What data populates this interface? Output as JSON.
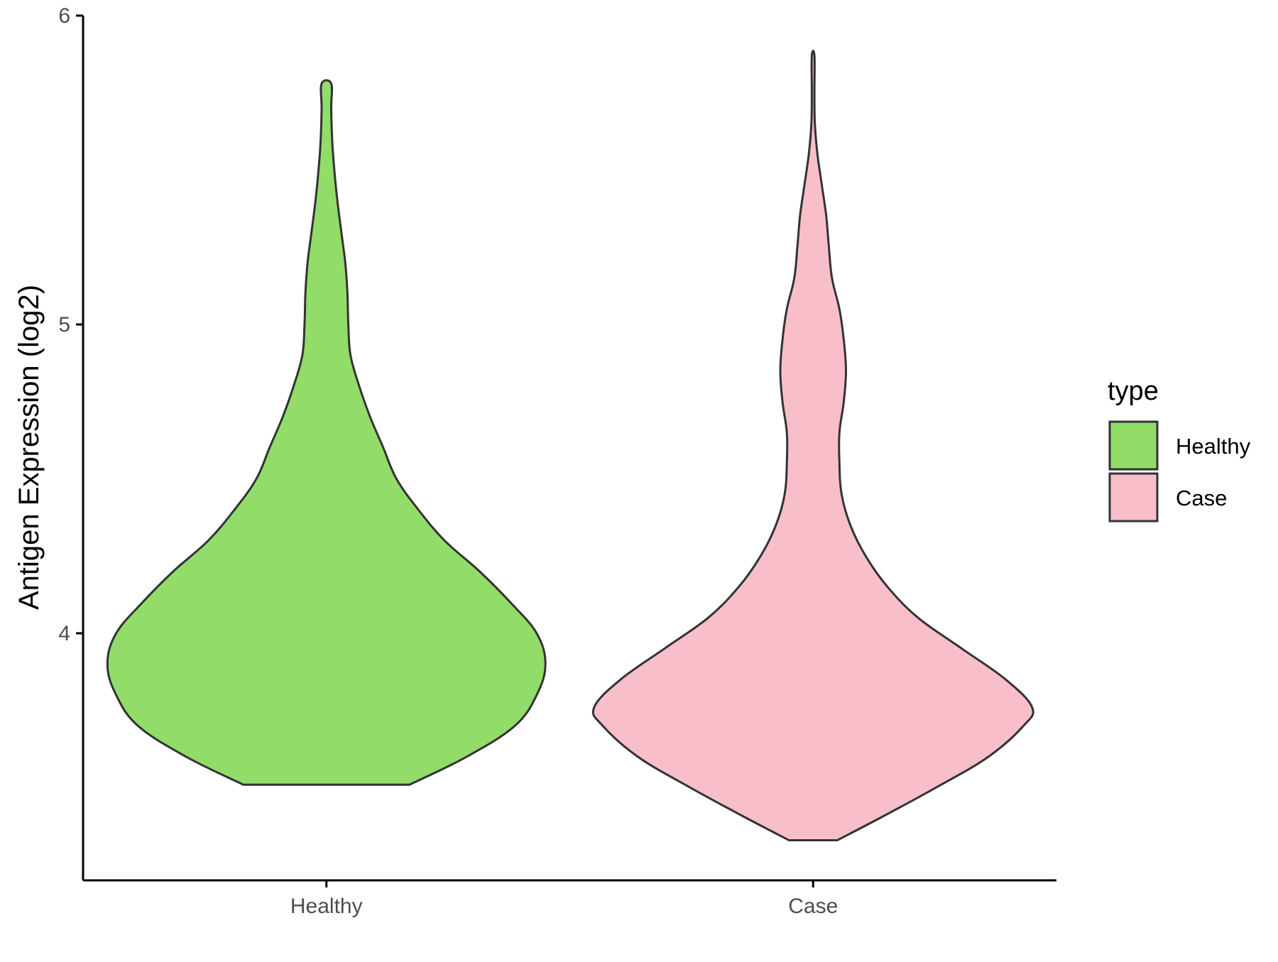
{
  "chart_data": {
    "type": "violin",
    "title": "",
    "xlabel": "",
    "ylabel": "Antigen Expression (log2)",
    "ylim": [
      3.2,
      6.0
    ],
    "y_ticks": [
      "4",
      "5",
      "6"
    ],
    "y_tick_values": [
      4,
      5,
      6
    ],
    "categories": [
      "Healthy",
      "Case"
    ],
    "legend": {
      "title": "type",
      "position": "right",
      "entries": [
        "Healthy",
        "Case"
      ]
    },
    "series": [
      {
        "name": "Healthy",
        "color": "#92dc6a",
        "min": 3.51,
        "max": 5.78,
        "density_profile": [
          [
            3.51,
            0.19
          ],
          [
            3.6,
            0.32
          ],
          [
            3.7,
            0.43
          ],
          [
            3.8,
            0.48
          ],
          [
            3.9,
            0.5
          ],
          [
            4.0,
            0.48
          ],
          [
            4.1,
            0.42
          ],
          [
            4.2,
            0.35
          ],
          [
            4.3,
            0.27
          ],
          [
            4.4,
            0.21
          ],
          [
            4.5,
            0.16
          ],
          [
            4.6,
            0.13
          ],
          [
            4.7,
            0.1
          ],
          [
            4.8,
            0.075
          ],
          [
            4.9,
            0.055
          ],
          [
            5.0,
            0.05
          ],
          [
            5.1,
            0.048
          ],
          [
            5.2,
            0.043
          ],
          [
            5.3,
            0.034
          ],
          [
            5.4,
            0.025
          ],
          [
            5.5,
            0.018
          ],
          [
            5.6,
            0.013
          ],
          [
            5.7,
            0.011
          ],
          [
            5.78,
            0.011
          ]
        ]
      },
      {
        "name": "Case",
        "color": "#f8bfca",
        "min": 3.33,
        "max": 5.87,
        "density_profile": [
          [
            3.33,
            0.055
          ],
          [
            3.4,
            0.15
          ],
          [
            3.5,
            0.28
          ],
          [
            3.6,
            0.4
          ],
          [
            3.7,
            0.48
          ],
          [
            3.76,
            0.5
          ],
          [
            3.85,
            0.44
          ],
          [
            3.95,
            0.34
          ],
          [
            4.05,
            0.24
          ],
          [
            4.15,
            0.17
          ],
          [
            4.25,
            0.12
          ],
          [
            4.35,
            0.085
          ],
          [
            4.45,
            0.065
          ],
          [
            4.55,
            0.06
          ],
          [
            4.65,
            0.06
          ],
          [
            4.75,
            0.07
          ],
          [
            4.85,
            0.075
          ],
          [
            4.95,
            0.07
          ],
          [
            5.05,
            0.06
          ],
          [
            5.15,
            0.043
          ],
          [
            5.25,
            0.036
          ],
          [
            5.35,
            0.03
          ],
          [
            5.45,
            0.02
          ],
          [
            5.55,
            0.01
          ],
          [
            5.65,
            0.004
          ],
          [
            5.75,
            0.003
          ],
          [
            5.87,
            0.003
          ]
        ]
      }
    ]
  }
}
